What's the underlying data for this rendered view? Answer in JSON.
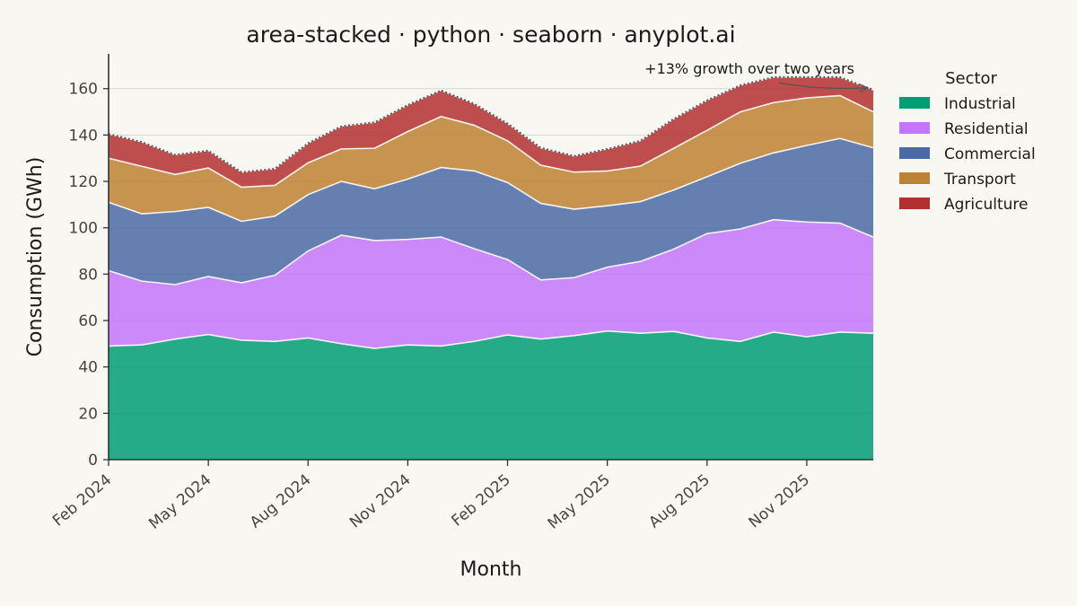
{
  "chart_data": {
    "type": "area",
    "stacked": true,
    "title": "area-stacked · python · seaborn · anyplot.ai",
    "xlabel": "Month",
    "ylabel": "Consumption (GWh)",
    "ylim": [
      0,
      175
    ],
    "yticks": [
      0,
      20,
      40,
      60,
      80,
      100,
      120,
      140,
      160
    ],
    "x": [
      "2024-02",
      "2024-03",
      "2024-04",
      "2024-05",
      "2024-06",
      "2024-07",
      "2024-08",
      "2024-09",
      "2024-10",
      "2024-11",
      "2024-12",
      "2025-01",
      "2025-02",
      "2025-03",
      "2025-04",
      "2025-05",
      "2025-06",
      "2025-07",
      "2025-08",
      "2025-09",
      "2025-10",
      "2025-11",
      "2025-12",
      "2026-01"
    ],
    "xticks": [
      {
        "date": "2024-02",
        "label": "Feb 2024"
      },
      {
        "date": "2024-05",
        "label": "May 2024"
      },
      {
        "date": "2024-08",
        "label": "Aug 2024"
      },
      {
        "date": "2024-11",
        "label": "Nov 2024"
      },
      {
        "date": "2025-02",
        "label": "Feb 2025"
      },
      {
        "date": "2025-05",
        "label": "May 2025"
      },
      {
        "date": "2025-08",
        "label": "Aug 2025"
      },
      {
        "date": "2025-11",
        "label": "Nov 2025"
      }
    ],
    "series": [
      {
        "name": "Industrial",
        "color": "#009e73",
        "values": [
          49,
          49.5,
          52,
          54,
          51.5,
          51,
          52.5,
          50,
          48,
          49.5,
          49,
          51,
          53.8,
          52,
          53.5,
          55.5,
          54.5,
          55.3,
          52.5,
          51,
          55,
          53,
          55,
          54.5
        ]
      },
      {
        "name": "Residential",
        "color": "#c475fb",
        "values": [
          32.5,
          27.5,
          23.5,
          25,
          24.8,
          28.5,
          37.5,
          46.8,
          46.5,
          45.5,
          47,
          40,
          32.5,
          25.5,
          25,
          27.5,
          31,
          35.5,
          45,
          48.5,
          48.5,
          49.5,
          47,
          41.5
        ]
      },
      {
        "name": "Commercial",
        "color": "#4a6aa5",
        "values": [
          29.5,
          29,
          31.5,
          29.8,
          26.5,
          25.5,
          24.3,
          23.2,
          22.3,
          26,
          30,
          33.5,
          33.2,
          33,
          29.5,
          26.5,
          25.8,
          25.5,
          24.5,
          28.3,
          28.8,
          33,
          36.5,
          38.5
        ]
      },
      {
        "name": "Transport",
        "color": "#bd8233",
        "values": [
          19,
          20.5,
          16,
          17,
          14.7,
          13.3,
          13.7,
          14,
          17.5,
          20.5,
          22,
          19.7,
          18,
          16.5,
          16,
          15,
          15.3,
          18,
          20,
          22.2,
          21.7,
          20.5,
          18.5,
          15.5
        ]
      },
      {
        "name": "Agriculture",
        "color": "#b33030",
        "values": [
          10.5,
          10.5,
          8.5,
          7.5,
          6.5,
          7.2,
          8.5,
          9.8,
          11.2,
          11.5,
          11.3,
          9.3,
          7.5,
          7.5,
          7,
          9.5,
          11,
          12.7,
          13,
          11.5,
          11,
          9,
          8,
          9.5
        ]
      }
    ],
    "legend": {
      "title": "Sector",
      "placement": "right"
    },
    "annotation": {
      "text": "+13% growth over two years"
    },
    "grid": {
      "y": true,
      "x": false
    }
  }
}
